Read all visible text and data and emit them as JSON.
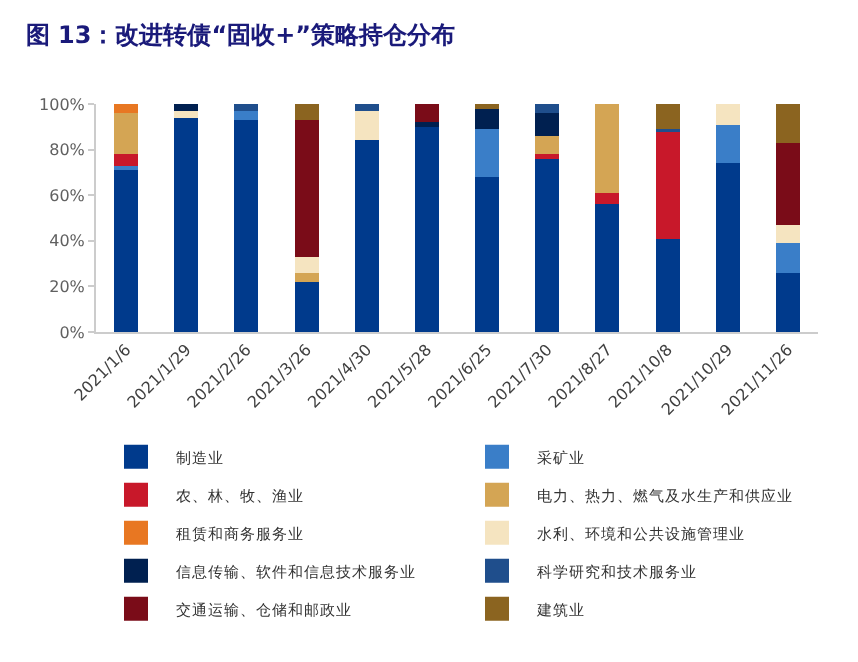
{
  "chart_data": {
    "type": "bar",
    "stacked": true,
    "title": "图 13：改进转债“固收+”策略持仓分布",
    "categories": [
      "2021/1/6",
      "2021/1/29",
      "2021/2/26",
      "2021/3/26",
      "2021/4/30",
      "2021/5/28",
      "2021/6/25",
      "2021/7/30",
      "2021/8/27",
      "2021/10/8",
      "2021/10/29",
      "2021/11/26"
    ],
    "series": [
      {
        "name": "制造业",
        "color": "#003a8c",
        "values": [
          71,
          94,
          93,
          22,
          84,
          90,
          68,
          76,
          56,
          41,
          74,
          26
        ]
      },
      {
        "name": "采矿业",
        "color": "#3a7ec8",
        "values": [
          2,
          0,
          4,
          0,
          0,
          0,
          21,
          0,
          0,
          0,
          17,
          13
        ]
      },
      {
        "name": "农、林、牧、渔业",
        "color": "#c8182a",
        "values": [
          5,
          0,
          0,
          0,
          0,
          0,
          0,
          2,
          5,
          47,
          0,
          0
        ]
      },
      {
        "name": "电力、热力、燃气及水生产和供应业",
        "color": "#d4a554",
        "values": [
          18,
          0,
          0,
          4,
          0,
          0,
          0,
          8,
          39,
          0,
          0,
          0
        ]
      },
      {
        "name": "租赁和商务服务业",
        "color": "#e87722",
        "values": [
          4,
          0,
          0,
          0,
          0,
          0,
          0,
          0,
          0,
          0,
          0,
          0
        ]
      },
      {
        "name": "水利、环境和公共设施管理业",
        "color": "#f5e4c0",
        "values": [
          0,
          3,
          0,
          7,
          13,
          0,
          0,
          0,
          0,
          0,
          9,
          8
        ]
      },
      {
        "name": "信息传输、软件和信息技术服务业",
        "color": "#002050",
        "values": [
          0,
          3,
          0,
          0,
          0,
          2,
          9,
          10,
          0,
          0,
          0,
          0
        ]
      },
      {
        "name": "科学研究和技术服务业",
        "color": "#1f4e8c",
        "values": [
          0,
          0,
          3,
          0,
          3,
          0,
          0,
          4,
          0,
          1,
          0,
          0
        ]
      },
      {
        "name": "交通运输、仓储和邮政业",
        "color": "#7a0c18",
        "values": [
          0,
          0,
          0,
          60,
          0,
          8,
          0,
          0,
          0,
          0,
          0,
          36
        ]
      },
      {
        "name": "建筑业",
        "color": "#8b6420",
        "values": [
          0,
          0,
          0,
          7,
          0,
          0,
          2,
          0,
          0,
          11,
          0,
          17
        ]
      }
    ],
    "ylim": [
      0,
      100
    ],
    "yticks": [
      {
        "value": 0,
        "label": "0%"
      },
      {
        "value": 20,
        "label": "20%"
      },
      {
        "value": 40,
        "label": "40%"
      },
      {
        "value": 60,
        "label": "60%"
      },
      {
        "value": 80,
        "label": "80%"
      },
      {
        "value": 100,
        "label": "100%"
      }
    ],
    "legend": "bottom"
  }
}
